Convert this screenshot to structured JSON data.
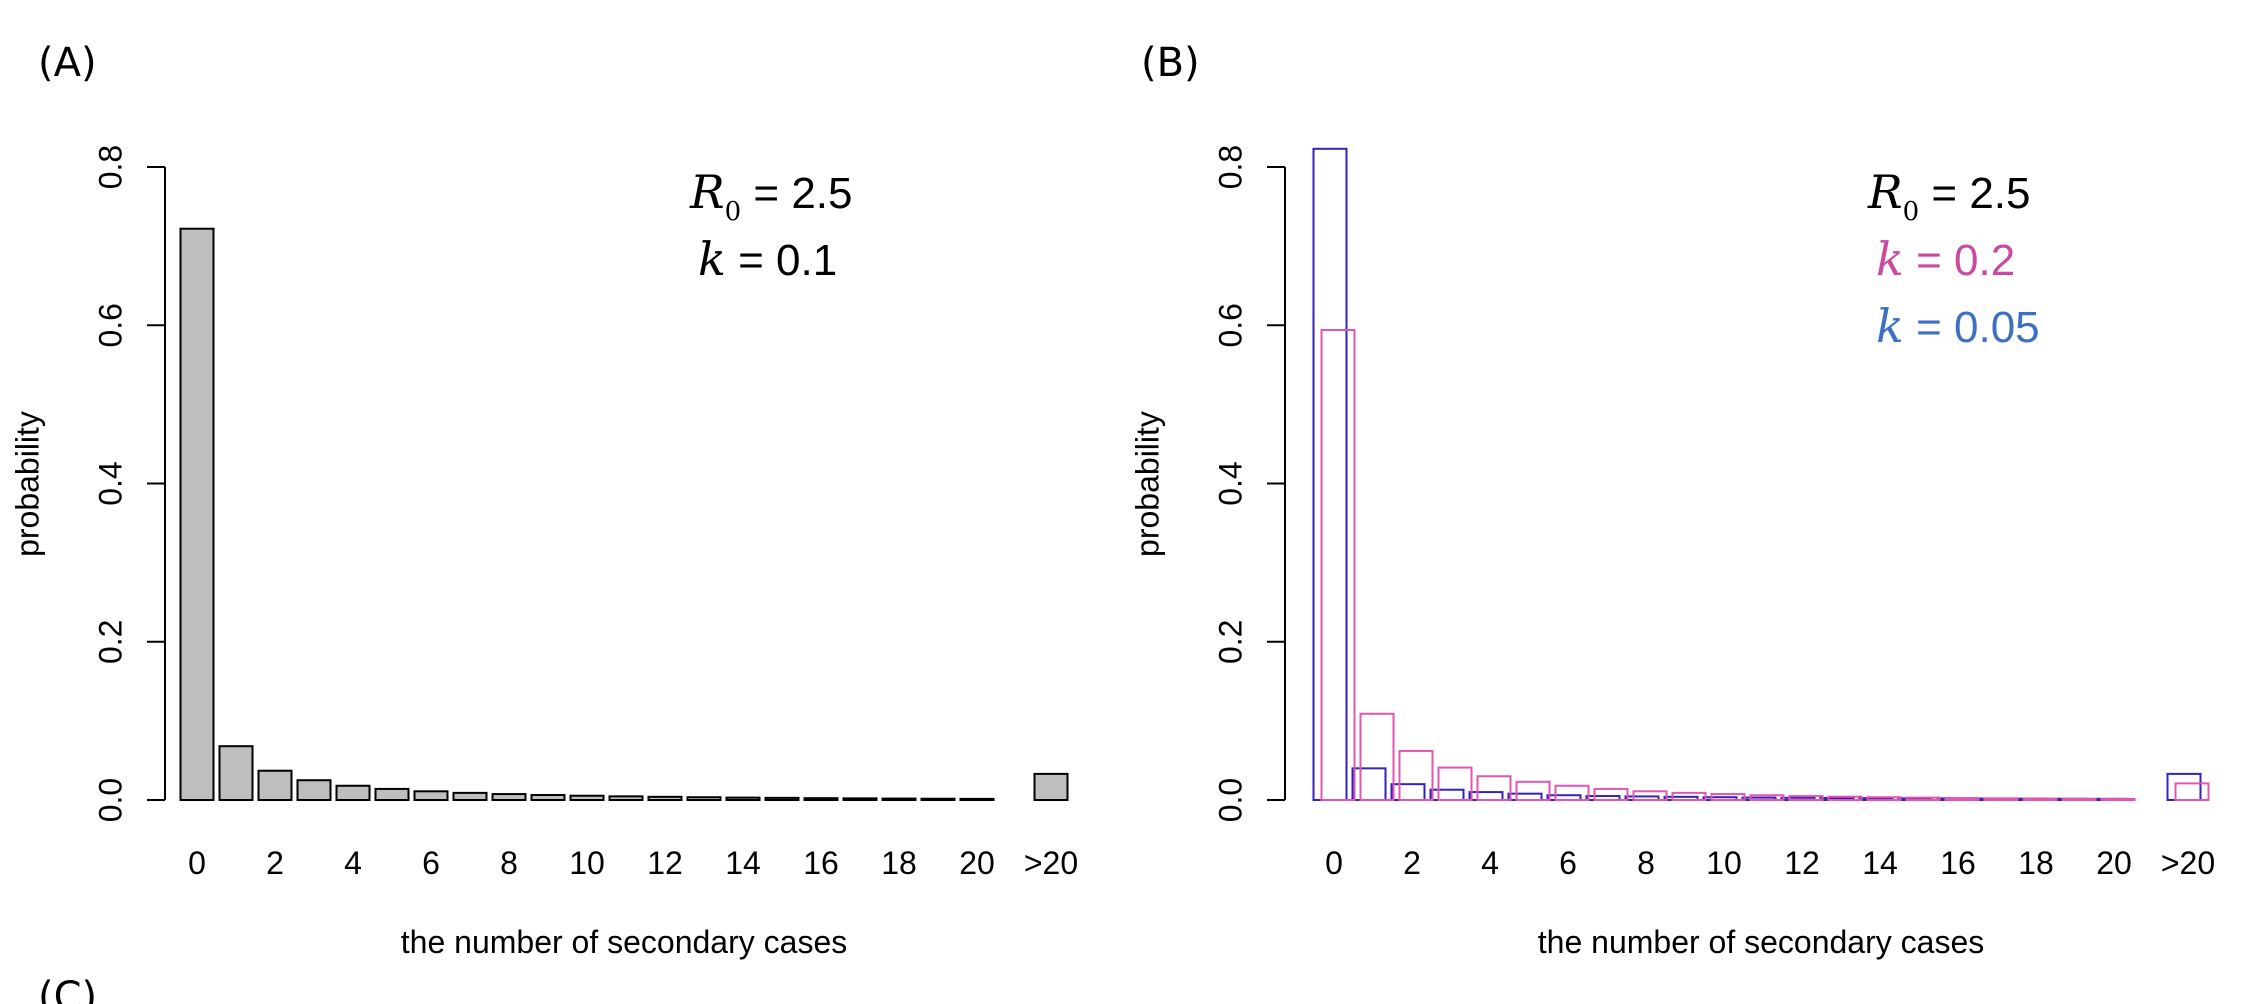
{
  "chart_data": [
    {
      "type": "bar",
      "panel_label": "(A)",
      "xlabel": "the number of secondary cases",
      "ylabel": "probability",
      "ylim": [
        0,
        0.8
      ],
      "yticks": [
        "0.0",
        "0.2",
        "0.4",
        "0.6",
        "0.8"
      ],
      "xtick_labels": [
        "0",
        "2",
        "4",
        "6",
        "8",
        "10",
        "12",
        "14",
        "16",
        "18",
        "20",
        ">20"
      ],
      "categories": [
        "0",
        "1",
        "2",
        "3",
        "4",
        "5",
        "6",
        "7",
        "8",
        "9",
        "10",
        "11",
        "12",
        "13",
        "14",
        "15",
        "16",
        "17",
        "18",
        "19",
        "20",
        ">20"
      ],
      "series": [
        {
          "color": "#bebebe",
          "values": [
            0.722,
            0.068,
            0.037,
            0.025,
            0.018,
            0.014,
            0.011,
            0.009,
            0.0075,
            0.0063,
            0.0054,
            0.0046,
            0.004,
            0.0035,
            0.003,
            0.0027,
            0.0023,
            0.0021,
            0.0018,
            0.0016,
            0.0014,
            0.033
          ]
        }
      ],
      "annotations": [
        {
          "symbol": "R",
          "subscript": "0",
          "text": " = 2.5",
          "color": "#000000"
        },
        {
          "symbol": "k",
          "subscript": "",
          "text": " = 0.1",
          "color": "#000000"
        }
      ]
    },
    {
      "type": "bar",
      "panel_label": "(B)",
      "xlabel": "the number of secondary cases",
      "ylabel": "probability",
      "ylim": [
        0,
        0.8
      ],
      "yticks": [
        "0.0",
        "0.2",
        "0.4",
        "0.6",
        "0.8"
      ],
      "xtick_labels": [
        "0",
        "2",
        "4",
        "6",
        "8",
        "10",
        "12",
        "14",
        "16",
        "18",
        "20",
        ">20"
      ],
      "categories": [
        "0",
        "1",
        "2",
        "3",
        "4",
        "5",
        "6",
        "7",
        "8",
        "9",
        "10",
        "11",
        "12",
        "13",
        "14",
        "15",
        "16",
        "17",
        "18",
        "19",
        "20",
        ">20"
      ],
      "series": [
        {
          "name": "k = 0.05",
          "color": "#3322bb",
          "values": [
            0.823,
            0.04,
            0.02,
            0.013,
            0.01,
            0.008,
            0.006,
            0.005,
            0.0045,
            0.004,
            0.0035,
            0.003,
            0.0028,
            0.0025,
            0.0023,
            0.0021,
            0.002,
            0.0018,
            0.0017,
            0.0016,
            0.0015,
            0.033
          ]
        },
        {
          "name": "k = 0.2",
          "color": "#e255b0",
          "values": [
            0.594,
            0.109,
            0.062,
            0.041,
            0.03,
            0.023,
            0.018,
            0.014,
            0.011,
            0.009,
            0.0075,
            0.006,
            0.005,
            0.0042,
            0.0035,
            0.003,
            0.0025,
            0.0021,
            0.0018,
            0.0015,
            0.0013,
            0.021
          ]
        }
      ],
      "annotations": [
        {
          "symbol": "R",
          "subscript": "0",
          "text": " = 2.5",
          "color": "#000000"
        },
        {
          "symbol": "k",
          "subscript": "",
          "text": " = 0.2",
          "color": "#c94aa0"
        },
        {
          "symbol": "k",
          "subscript": "",
          "text": " = 0.05",
          "color": "#3d6fc4"
        }
      ]
    }
  ],
  "extra_label": "(C)"
}
